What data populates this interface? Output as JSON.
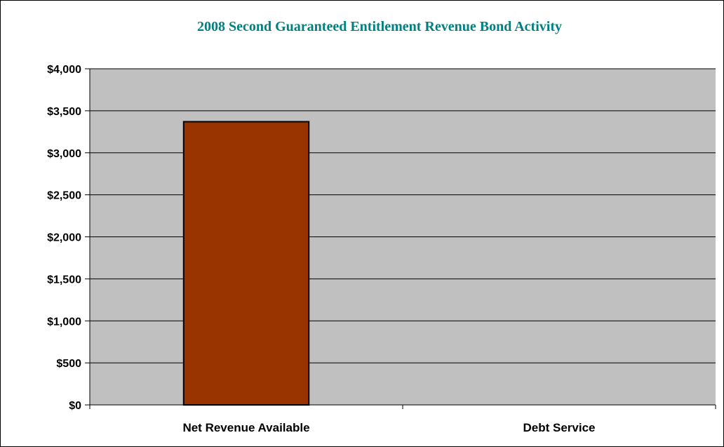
{
  "chart_data": {
    "type": "bar",
    "title": "2008 Second Guaranteed Entitlement Revenue Bond Activity",
    "xlabel": "",
    "ylabel": "",
    "categories": [
      "Net Revenue Available",
      "Debt Service"
    ],
    "values": [
      3370,
      0
    ],
    "ylim": [
      0,
      4000
    ],
    "yticks": [
      0,
      500,
      1000,
      1500,
      2000,
      2500,
      3000,
      3500,
      4000
    ],
    "ytick_labels": [
      "$0",
      "$500",
      "$1,000",
      "$1,500",
      "$2,000",
      "$2,500",
      "$3,000",
      "$3,500",
      "$4,000"
    ],
    "grid": true,
    "legend": "none",
    "colors": {
      "title": "#008080",
      "plot_background": "#C0C0C0",
      "bar_fill": "#993300",
      "bar_outline": "#000000",
      "gridline": "#000000"
    }
  }
}
